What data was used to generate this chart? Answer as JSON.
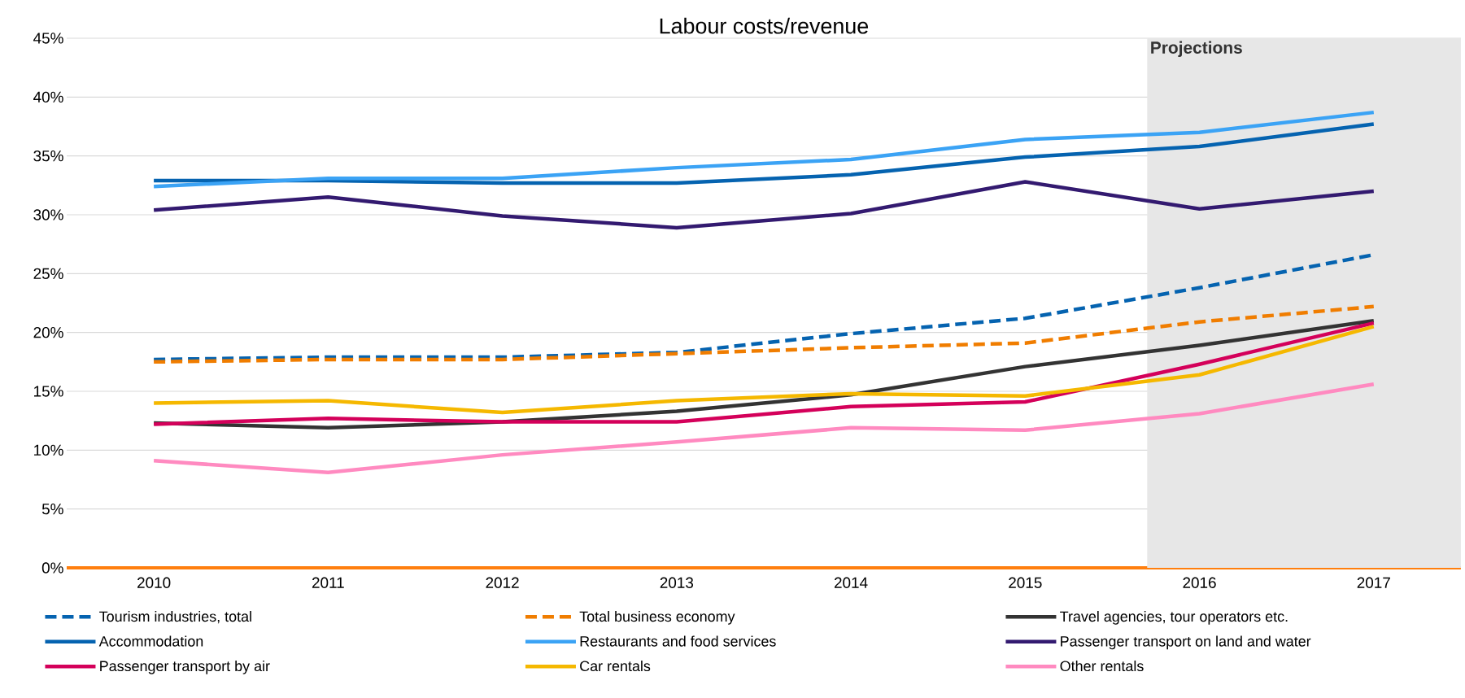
{
  "chart_data": {
    "type": "line",
    "title": "Labour costs/revenue",
    "x": [
      2010,
      2011,
      2012,
      2013,
      2014,
      2015,
      2016,
      2017
    ],
    "xlim": [
      2009.5,
      2017.5
    ],
    "xticks": [
      2010,
      2011,
      2012,
      2013,
      2014,
      2015,
      2016,
      2017
    ],
    "ylim": [
      0,
      45
    ],
    "yticks": [
      {
        "value": 0,
        "label": "0%"
      },
      {
        "value": 5,
        "label": "5%"
      },
      {
        "value": 10,
        "label": "10%"
      },
      {
        "value": 15,
        "label": "15%"
      },
      {
        "value": 20,
        "label": "20%"
      },
      {
        "value": 25,
        "label": "25%"
      },
      {
        "value": 30,
        "label": "30%"
      },
      {
        "value": 35,
        "label": "35%"
      },
      {
        "value": 40,
        "label": "40%"
      },
      {
        "value": 45,
        "label": "45%"
      }
    ],
    "grid": "y",
    "legend": "bottom",
    "bands": [
      {
        "axis": "x",
        "from": 2015.7,
        "to": 2017.5,
        "label": "Projections",
        "color": "#e7e7e7"
      }
    ],
    "series": [
      {
        "name": "Tourism industries, total",
        "color": "#0563b0",
        "line_style": "dashed",
        "values": [
          17.7,
          17.9,
          17.9,
          18.3,
          19.9,
          21.2,
          23.8,
          26.6
        ]
      },
      {
        "name": "Total business economy",
        "color": "#f07d00",
        "line_style": "dashed",
        "values": [
          17.5,
          17.7,
          17.7,
          18.2,
          18.7,
          19.1,
          20.9,
          22.2
        ]
      },
      {
        "name": "Travel agencies, tour operators etc.",
        "color": "#333333",
        "values": [
          12.3,
          11.9,
          12.4,
          13.3,
          14.7,
          17.1,
          18.9,
          21.0
        ]
      },
      {
        "name": "Accommodation",
        "color": "#0563b0",
        "values": [
          32.9,
          32.9,
          32.7,
          32.7,
          33.4,
          34.9,
          35.8,
          37.7
        ]
      },
      {
        "name": "Restaurants and food services",
        "color": "#3ba3f5",
        "values": [
          32.4,
          33.1,
          33.1,
          34.0,
          34.7,
          36.4,
          37.0,
          38.7
        ]
      },
      {
        "name": "Passenger transport on land and water",
        "color": "#331a70",
        "values": [
          30.4,
          31.5,
          29.9,
          28.9,
          30.1,
          32.8,
          30.5,
          32.0
        ]
      },
      {
        "name": "Passenger transport by air",
        "color": "#d4005a",
        "values": [
          12.2,
          12.7,
          12.4,
          12.4,
          13.7,
          14.1,
          17.3,
          20.8
        ]
      },
      {
        "name": "Car rentals",
        "color": "#f5b800",
        "values": [
          14.0,
          14.2,
          13.2,
          14.2,
          14.8,
          14.6,
          16.4,
          20.5
        ]
      },
      {
        "name": "Other rentals",
        "color": "#ff8ac0",
        "values": [
          9.1,
          8.1,
          9.6,
          10.7,
          11.9,
          11.7,
          13.1,
          15.6
        ]
      }
    ]
  }
}
